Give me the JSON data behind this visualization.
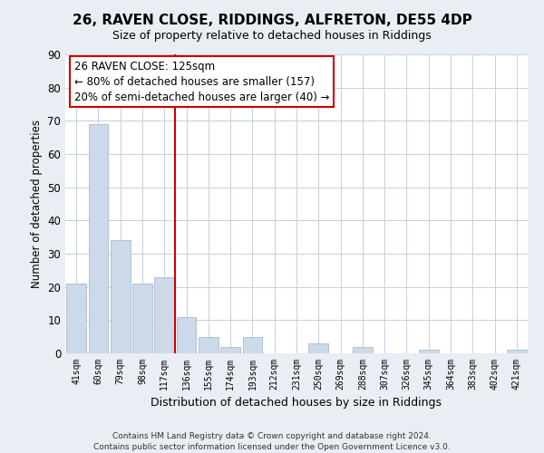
{
  "title": "26, RAVEN CLOSE, RIDDINGS, ALFRETON, DE55 4DP",
  "subtitle": "Size of property relative to detached houses in Riddings",
  "xlabel": "Distribution of detached houses by size in Riddings",
  "ylabel": "Number of detached properties",
  "bar_color": "#ccd9e8",
  "bar_edge_color": "#a8bcd0",
  "categories": [
    "41sqm",
    "60sqm",
    "79sqm",
    "98sqm",
    "117sqm",
    "136sqm",
    "155sqm",
    "174sqm",
    "193sqm",
    "212sqm",
    "231sqm",
    "250sqm",
    "269sqm",
    "288sqm",
    "307sqm",
    "326sqm",
    "345sqm",
    "364sqm",
    "383sqm",
    "402sqm",
    "421sqm"
  ],
  "values": [
    21,
    69,
    34,
    21,
    23,
    11,
    5,
    2,
    5,
    0,
    0,
    3,
    0,
    2,
    0,
    0,
    1,
    0,
    0,
    0,
    1
  ],
  "ylim": [
    0,
    90
  ],
  "yticks": [
    0,
    10,
    20,
    30,
    40,
    50,
    60,
    70,
    80,
    90
  ],
  "marker_label": "26 RAVEN CLOSE: 125sqm",
  "annotation_line1": "← 80% of detached houses are smaller (157)",
  "annotation_line2": "20% of semi-detached houses are larger (40) →",
  "red_line_x": 4.5,
  "footer_line1": "Contains HM Land Registry data © Crown copyright and database right 2024.",
  "footer_line2": "Contains public sector information licensed under the Open Government Licence v3.0.",
  "background_color": "#e8eef4",
  "plot_bg_color": "#ffffff",
  "grid_color": "#c5d0dc"
}
